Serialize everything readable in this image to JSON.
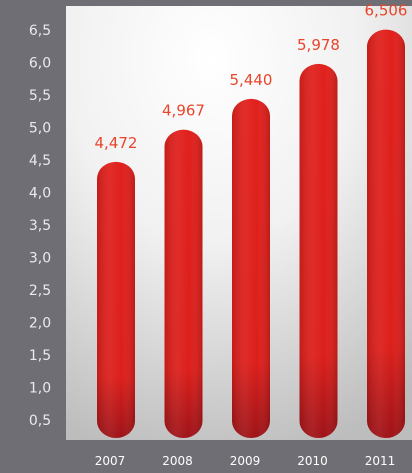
{
  "chart_data": {
    "type": "bar",
    "title": "",
    "xlabel": "",
    "ylabel": "",
    "categories": [
      "2007",
      "2008",
      "2009",
      "2010",
      "2011"
    ],
    "values": [
      4.472,
      4.967,
      5.44,
      5.978,
      6.506
    ],
    "value_labels": [
      "4,472",
      "4,967",
      "5,440",
      "5,978",
      "6,506"
    ],
    "yticks": [
      0.5,
      1.0,
      1.5,
      2.0,
      2.5,
      3.0,
      3.5,
      4.0,
      4.5,
      5.0,
      5.5,
      6.0,
      6.5
    ],
    "ytick_labels": [
      "0,5",
      "1,0",
      "1,5",
      "2,0",
      "2,5",
      "3,0",
      "3,5",
      "4,0",
      "4,5",
      "5,0",
      "5,5",
      "6,0",
      "6,5"
    ],
    "ylim": [
      0,
      6.5
    ],
    "grid": false,
    "legend": "none",
    "colors": {
      "bar": "#e0201c",
      "bar_dark": "#9e1318",
      "value_label": "#e8452a",
      "axis_panel": "#6e6e74",
      "plot_background": "#d8d8d8",
      "tick_label": "#e9e9ee"
    }
  }
}
